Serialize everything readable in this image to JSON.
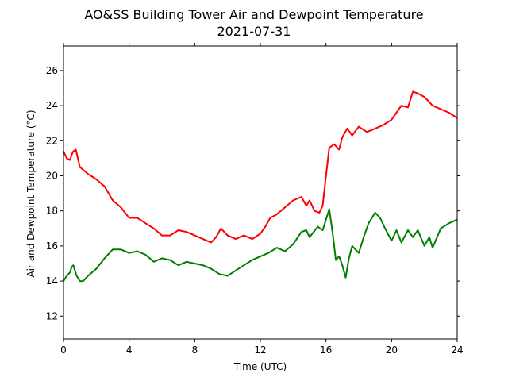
{
  "chart_data": {
    "type": "line",
    "title": "AO&SS Building Tower Air and Dewpoint Temperature",
    "subtitle": "2021-07-31",
    "xlabel": "Time (UTC)",
    "ylabel": "Air and Dewpoint Temperature (°C)",
    "xlim": [
      0,
      24
    ],
    "ylim": [
      10.7,
      27.4
    ],
    "xticks": [
      0,
      4,
      8,
      12,
      16,
      20,
      24
    ],
    "yticks": [
      12,
      14,
      16,
      18,
      20,
      22,
      24,
      26
    ],
    "grid": false,
    "legend": "none",
    "series": [
      {
        "color": "#ff0000",
        "x": [
          0,
          0.2,
          0.4,
          0.5,
          0.6,
          0.75,
          1.0,
          1.5,
          2.0,
          2.5,
          3.0,
          3.5,
          4.0,
          4.5,
          5.0,
          5.5,
          6.0,
          6.5,
          7.0,
          7.5,
          8.0,
          8.5,
          9.0,
          9.3,
          9.6,
          10.0,
          10.5,
          11.0,
          11.5,
          12.0,
          12.3,
          12.6,
          13.0,
          13.5,
          14.0,
          14.5,
          14.8,
          15.0,
          15.3,
          15.6,
          15.8,
          16.0,
          16.2,
          16.5,
          16.8,
          17.0,
          17.3,
          17.6,
          18.0,
          18.5,
          19.0,
          19.5,
          20.0,
          20.3,
          20.6,
          21.0,
          21.3,
          21.6,
          22.0,
          22.5,
          23.0,
          23.5,
          24.0
        ],
        "y": [
          21.4,
          21.0,
          20.9,
          21.2,
          21.4,
          21.5,
          20.5,
          20.1,
          19.8,
          19.4,
          18.6,
          18.2,
          17.6,
          17.6,
          17.3,
          17.0,
          16.6,
          16.6,
          16.9,
          16.8,
          16.6,
          16.4,
          16.2,
          16.5,
          17.0,
          16.6,
          16.4,
          16.6,
          16.4,
          16.7,
          17.1,
          17.6,
          17.8,
          18.2,
          18.6,
          18.8,
          18.3,
          18.6,
          18.0,
          17.9,
          18.3,
          20.0,
          21.6,
          21.8,
          21.5,
          22.2,
          22.7,
          22.3,
          22.8,
          22.5,
          22.7,
          22.9,
          23.2,
          23.6,
          24.0,
          23.9,
          24.8,
          24.7,
          24.5,
          24.0,
          23.8,
          23.6,
          23.3
        ]
      },
      {
        "color": "#008000",
        "x": [
          0,
          0.2,
          0.4,
          0.5,
          0.6,
          0.8,
          1.0,
          1.2,
          1.5,
          2.0,
          2.5,
          3.0,
          3.5,
          4.0,
          4.5,
          5.0,
          5.5,
          6.0,
          6.5,
          7.0,
          7.5,
          8.0,
          8.5,
          9.0,
          9.5,
          10.0,
          10.5,
          11.0,
          11.5,
          12.0,
          12.5,
          13.0,
          13.5,
          14.0,
          14.5,
          14.8,
          15.0,
          15.5,
          15.8,
          16.0,
          16.2,
          16.4,
          16.6,
          16.8,
          17.0,
          17.2,
          17.4,
          17.6,
          18.0,
          18.3,
          18.6,
          19.0,
          19.3,
          19.6,
          20.0,
          20.3,
          20.6,
          21.0,
          21.3,
          21.6,
          22.0,
          22.3,
          22.5,
          23.0,
          23.5,
          24.0
        ],
        "y": [
          14.0,
          14.3,
          14.5,
          14.8,
          14.9,
          14.3,
          14.0,
          14.0,
          14.3,
          14.7,
          15.3,
          15.8,
          15.8,
          15.6,
          15.7,
          15.5,
          15.1,
          15.3,
          15.2,
          14.9,
          15.1,
          15.0,
          14.9,
          14.7,
          14.4,
          14.3,
          14.6,
          14.9,
          15.2,
          15.4,
          15.6,
          15.9,
          15.7,
          16.1,
          16.8,
          16.9,
          16.5,
          17.1,
          16.9,
          17.5,
          18.1,
          16.8,
          15.2,
          15.4,
          14.9,
          14.2,
          15.3,
          16.0,
          15.6,
          16.5,
          17.3,
          17.9,
          17.6,
          17.0,
          16.3,
          16.9,
          16.2,
          16.9,
          16.5,
          16.9,
          16.0,
          16.5,
          15.9,
          17.0,
          17.3,
          17.5
        ]
      }
    ]
  }
}
